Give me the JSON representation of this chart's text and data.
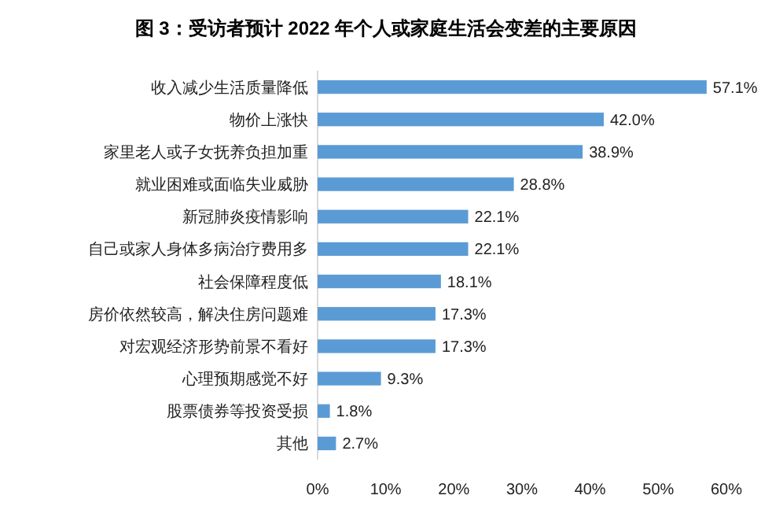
{
  "chart_data": {
    "type": "bar",
    "orientation": "horizontal",
    "title": "图 3：受访者预计 2022 年个人或家庭生活会变差的主要原因",
    "categories": [
      "收入减少生活质量降低",
      "物价上涨快",
      "家里老人或子女抚养负担加重",
      "就业困难或面临失业威胁",
      "新冠肺炎疫情影响",
      "自己或家人身体多病治疗费用多",
      "社会保障程度低",
      "房价依然较高，解决住房问题难",
      "对宏观经济形势前景不看好",
      "心理预期感觉不好",
      "股票债券等投资受损",
      "其他"
    ],
    "values": [
      57.1,
      42.0,
      38.9,
      28.8,
      22.1,
      22.1,
      18.1,
      17.3,
      17.3,
      9.3,
      1.8,
      2.7
    ],
    "value_labels": [
      "57.1%",
      "42.0%",
      "38.9%",
      "28.8%",
      "22.1%",
      "22.1%",
      "18.1%",
      "17.3%",
      "17.3%",
      "9.3%",
      "1.8%",
      "2.7%"
    ],
    "color": "#5b9bd5",
    "xlim": [
      0,
      60
    ],
    "xticks": [
      {
        "value": 0,
        "label": "0%"
      },
      {
        "value": 10,
        "label": "10%"
      },
      {
        "value": 20,
        "label": "20%"
      },
      {
        "value": 30,
        "label": "30%"
      },
      {
        "value": 40,
        "label": "40%"
      },
      {
        "value": 50,
        "label": "50%"
      },
      {
        "value": 60,
        "label": "60%"
      }
    ],
    "grid": false
  }
}
